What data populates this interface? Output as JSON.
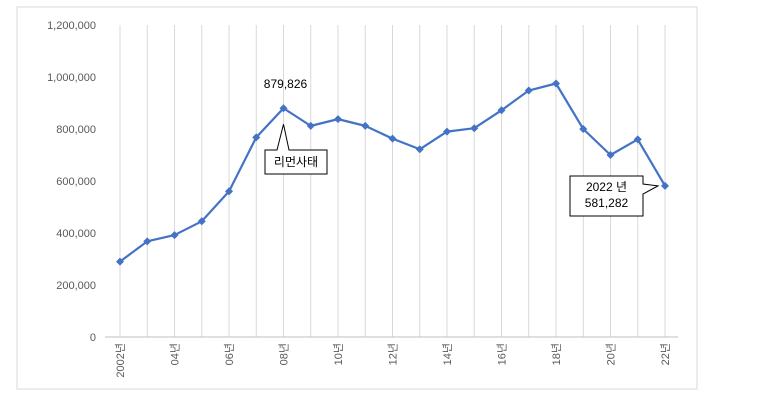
{
  "chart_data": {
    "type": "line",
    "title": "",
    "xlabel": "",
    "ylabel": "",
    "ylim": [
      0,
      1200000
    ],
    "yticks": [
      "0",
      "200,000",
      "400,000",
      "600,000",
      "800,000",
      "1,000,000",
      "1,200,000"
    ],
    "ytick_values": [
      0,
      200000,
      400000,
      600000,
      800000,
      1000000,
      1200000
    ],
    "x": [
      2002,
      2003,
      2004,
      2005,
      2006,
      2007,
      2008,
      2009,
      2010,
      2011,
      2012,
      2013,
      2014,
      2015,
      2016,
      2017,
      2018,
      2019,
      2020,
      2021,
      2022
    ],
    "xtick_labels": [
      "2002년",
      "",
      "04년",
      "",
      "06년",
      "",
      "08년",
      "",
      "10년",
      "",
      "12년",
      "",
      "14년",
      "",
      "16년",
      "",
      "18년",
      "",
      "20년",
      "",
      "22년"
    ],
    "series": [
      {
        "name": "",
        "color": "#4472C4",
        "values": [
          290000,
          368000,
          392000,
          445000,
          560000,
          768000,
          879826,
          812000,
          838000,
          812000,
          763000,
          722000,
          790000,
          803000,
          872000,
          948000,
          975000,
          800000,
          700000,
          760000,
          581282
        ]
      }
    ],
    "grid": "vertical",
    "annotations": [
      {
        "label": "879,826",
        "index": 6,
        "style": "text"
      },
      {
        "label": "리먼사태",
        "index": 6,
        "style": "callout"
      },
      {
        "line1": "2022 년",
        "line2": "581,282",
        "index": 20,
        "style": "callout"
      }
    ]
  }
}
